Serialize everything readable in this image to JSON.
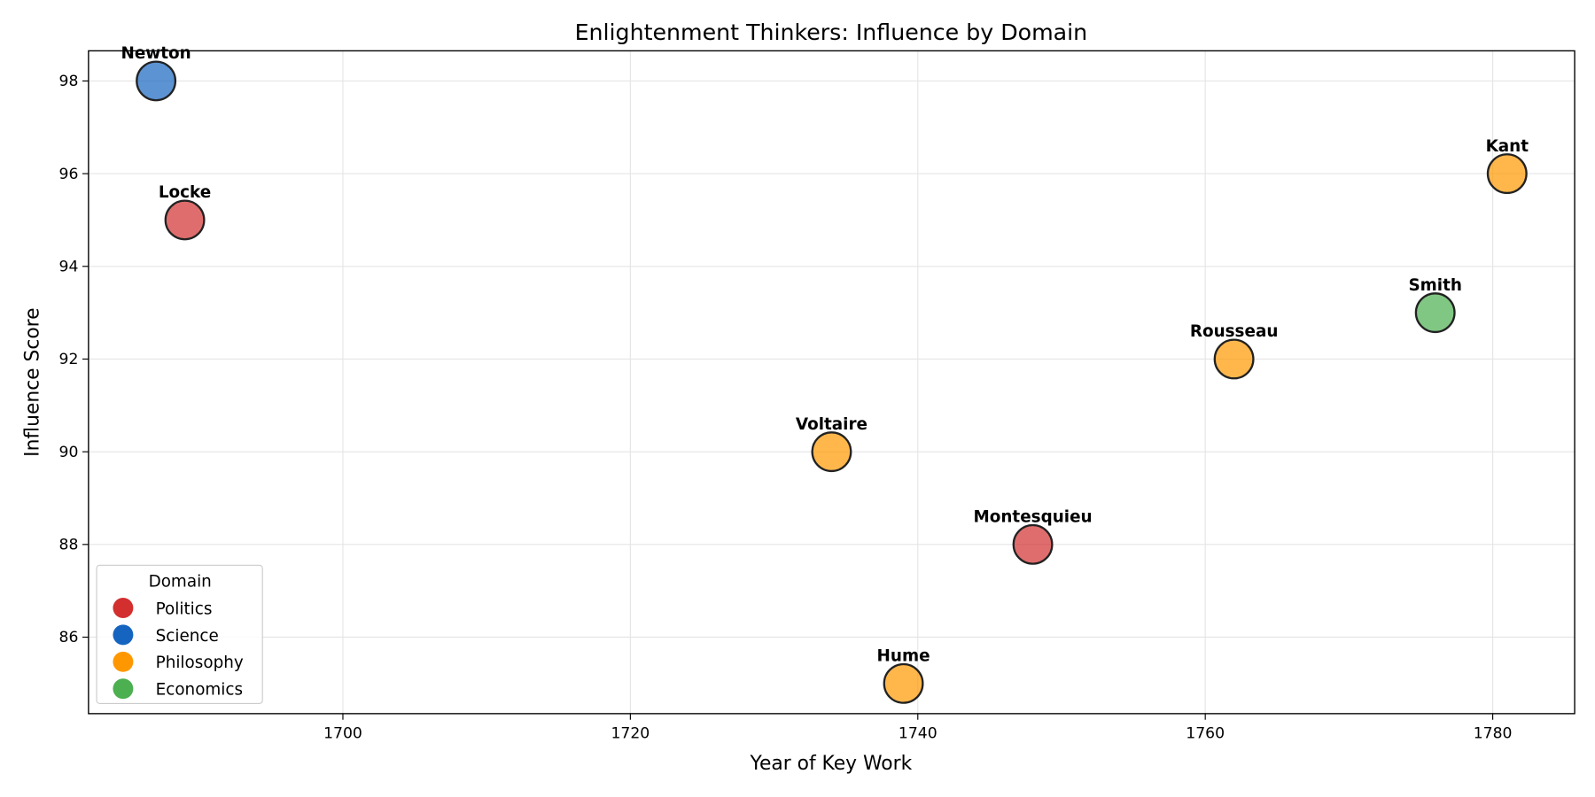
{
  "chart_data": {
    "type": "scatter",
    "title": "Enlightenment Thinkers: Influence by Domain",
    "xlabel": "Year of Key Work",
    "ylabel": "Influence Score",
    "xlim": [
      1682.3,
      1785.7
    ],
    "ylim": [
      84.35,
      98.65
    ],
    "xticks": [
      1700,
      1720,
      1740,
      1760,
      1780
    ],
    "yticks": [
      86,
      88,
      90,
      92,
      94,
      96,
      98
    ],
    "grid": true,
    "legend": {
      "title": "Domain",
      "placement": "lower-left",
      "entries": [
        {
          "name": "Politics",
          "color": "#d32f2f"
        },
        {
          "name": "Science",
          "color": "#1565c0"
        },
        {
          "name": "Philosophy",
          "color": "#ff9800"
        },
        {
          "name": "Economics",
          "color": "#4caf50"
        }
      ]
    },
    "points": [
      {
        "label": "Newton",
        "x": 1687,
        "y": 98,
        "domain": "Science"
      },
      {
        "label": "Locke",
        "x": 1689,
        "y": 95,
        "domain": "Politics"
      },
      {
        "label": "Voltaire",
        "x": 1734,
        "y": 90,
        "domain": "Philosophy"
      },
      {
        "label": "Hume",
        "x": 1739,
        "y": 85,
        "domain": "Philosophy"
      },
      {
        "label": "Montesquieu",
        "x": 1748,
        "y": 88,
        "domain": "Politics"
      },
      {
        "label": "Rousseau",
        "x": 1762,
        "y": 92,
        "domain": "Philosophy"
      },
      {
        "label": "Smith",
        "x": 1776,
        "y": 93,
        "domain": "Economics"
      },
      {
        "label": "Kant",
        "x": 1781,
        "y": 96,
        "domain": "Philosophy"
      }
    ]
  }
}
